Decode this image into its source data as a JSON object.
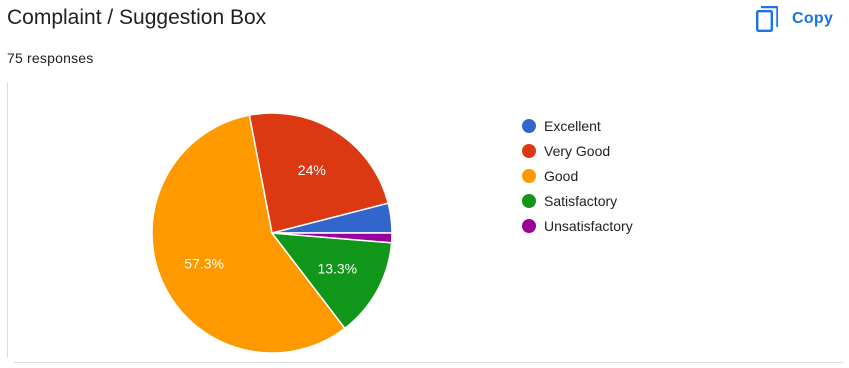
{
  "header": {
    "title": "Complaint / Suggestion Box",
    "responses": "75 responses",
    "copy_label": "Copy",
    "copy_icon": "copy-icon"
  },
  "colors": {
    "accent": "#1a73e8",
    "text": "#202124",
    "divider": "#dadce0"
  },
  "chart_data": {
    "type": "pie",
    "title": "",
    "categories": [
      "Excellent",
      "Very Good",
      "Good",
      "Satisfactory",
      "Unsatisfactory"
    ],
    "values": [
      4.0,
      24.0,
      57.3,
      13.3,
      1.3
    ],
    "colors": [
      "#3366cc",
      "#dc3912",
      "#ff9900",
      "#109618",
      "#990099"
    ],
    "data_labels": [
      "",
      "24%",
      "57.3%",
      "13.3%",
      ""
    ],
    "legend_position": "right"
  }
}
